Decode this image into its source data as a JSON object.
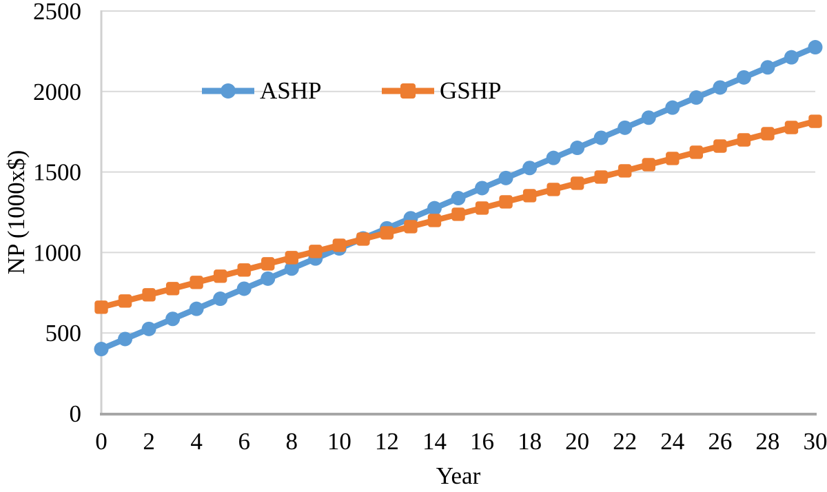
{
  "chart_data": {
    "type": "line",
    "title": "",
    "xlabel": "Year",
    "ylabel": "NP (1000x$)",
    "x": [
      0,
      1,
      2,
      3,
      4,
      5,
      6,
      7,
      8,
      9,
      10,
      11,
      12,
      13,
      14,
      15,
      16,
      17,
      18,
      19,
      20,
      21,
      22,
      23,
      24,
      25,
      26,
      27,
      28,
      29,
      30
    ],
    "series": [
      {
        "name": "ASHP",
        "marker": "circle",
        "color": "#5B9BD5",
        "values": [
          400,
          462.5,
          525,
          587.5,
          650,
          712.5,
          775,
          837.5,
          900,
          962.5,
          1025,
          1087.5,
          1150,
          1212.5,
          1275,
          1337.5,
          1400,
          1462.5,
          1525,
          1587.5,
          1650,
          1712.5,
          1775,
          1837.5,
          1900,
          1962.5,
          2025,
          2087.5,
          2150,
          2212.5,
          2275
        ]
      },
      {
        "name": "GSHP",
        "marker": "square",
        "color": "#ED7D31",
        "values": [
          660,
          698.5,
          737,
          775.5,
          814,
          852.5,
          891,
          929.5,
          968,
          1006.5,
          1045,
          1083.5,
          1122,
          1160.5,
          1199,
          1237.5,
          1276,
          1314.5,
          1353,
          1391.5,
          1430,
          1468.5,
          1507,
          1545.5,
          1584,
          1622.5,
          1661,
          1699.5,
          1738,
          1776.5,
          1815
        ]
      }
    ],
    "xlim": [
      0,
      30
    ],
    "ylim": [
      0,
      2500
    ],
    "x_ticks": [
      0,
      2,
      4,
      6,
      8,
      10,
      12,
      14,
      16,
      18,
      20,
      22,
      24,
      26,
      28,
      30
    ],
    "y_ticks": [
      0,
      500,
      1000,
      1500,
      2000,
      2500
    ],
    "grid": "horizontal",
    "legend_position": "inside-top-center",
    "colors": {
      "gridline": "#D9D9D9",
      "y_axis_line": "#D0D0D0",
      "x_axis_line": "#A6A6A6",
      "text": "#000000"
    }
  }
}
